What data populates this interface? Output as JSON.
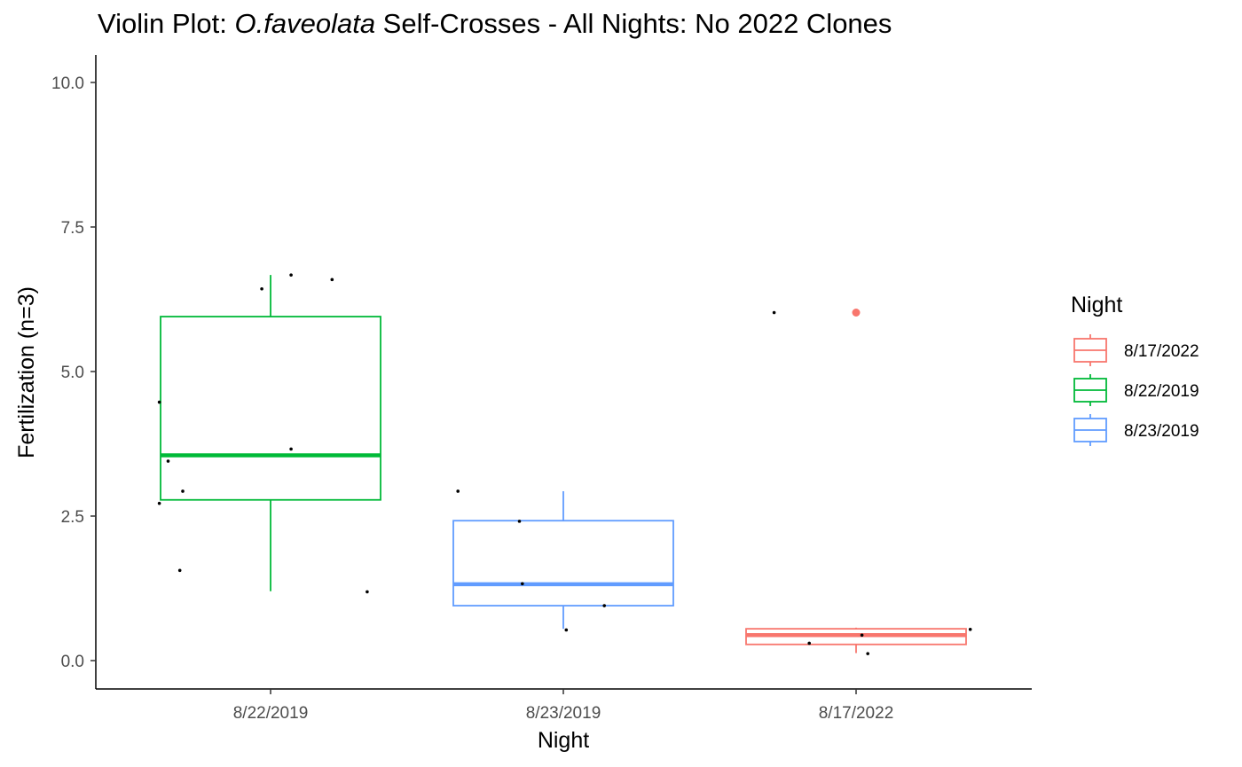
{
  "chart_data": {
    "type": "box",
    "title_prefix": "Violin Plot: ",
    "title_italic": "O.faveolata",
    "title_suffix": " Self-Crosses - All Nights: No 2022 Clones",
    "xlabel": "Night",
    "ylabel": "Fertilization (n=3)",
    "ylim": [
      -1.0,
      10.5
    ],
    "yticks": [
      0.0,
      2.5,
      5.0,
      7.5,
      10.0
    ],
    "ytick_labels": [
      "0.0",
      "2.5",
      "5.0",
      "7.5",
      "10.0"
    ],
    "categories": [
      "8/22/2019",
      "8/23/2019",
      "8/17/2022"
    ],
    "grid": false,
    "legend": {
      "title": "Night",
      "position": "right",
      "entries": [
        "8/17/2022",
        "8/22/2019",
        "8/23/2019"
      ]
    },
    "colors": {
      "8/17/2022": "#F8766D",
      "8/22/2019": "#00BA38",
      "8/23/2019": "#619CFF"
    },
    "boxes": [
      {
        "category": "8/22/2019",
        "whisker_low": 1.2,
        "q1": 2.78,
        "median": 3.55,
        "q3": 5.95,
        "whisker_high": 6.67,
        "outliers": []
      },
      {
        "category": "8/23/2019",
        "whisker_low": 0.55,
        "q1": 0.95,
        "median": 1.32,
        "q3": 2.42,
        "whisker_high": 2.93,
        "outliers": []
      },
      {
        "category": "8/17/2022",
        "whisker_low": 0.13,
        "q1": 0.28,
        "median": 0.44,
        "q3": 0.55,
        "whisker_high": 0.57,
        "outliers": [
          6.02
        ]
      }
    ],
    "points": [
      {
        "category": "8/22/2019",
        "x": 0.62,
        "y": 4.47
      },
      {
        "category": "8/22/2019",
        "x": 0.65,
        "y": 3.45
      },
      {
        "category": "8/22/2019",
        "x": 0.7,
        "y": 2.93
      },
      {
        "category": "8/22/2019",
        "x": 0.62,
        "y": 2.72
      },
      {
        "category": "8/22/2019",
        "x": 0.69,
        "y": 1.56
      },
      {
        "category": "8/22/2019",
        "x": 0.97,
        "y": 6.43
      },
      {
        "category": "8/22/2019",
        "x": 1.07,
        "y": 6.67
      },
      {
        "category": "8/22/2019",
        "x": 1.21,
        "y": 6.59
      },
      {
        "category": "8/22/2019",
        "x": 1.07,
        "y": 3.66
      },
      {
        "category": "8/22/2019",
        "x": 1.33,
        "y": 1.19
      },
      {
        "category": "8/23/2019",
        "x": 1.64,
        "y": 2.93
      },
      {
        "category": "8/23/2019",
        "x": 1.85,
        "y": 2.41
      },
      {
        "category": "8/23/2019",
        "x": 1.86,
        "y": 1.33
      },
      {
        "category": "8/23/2019",
        "x": 2.14,
        "y": 0.95
      },
      {
        "category": "8/23/2019",
        "x": 2.01,
        "y": 0.53
      },
      {
        "category": "8/17/2022",
        "x": 2.72,
        "y": 6.02
      },
      {
        "category": "8/17/2022",
        "x": 2.84,
        "y": 0.3
      },
      {
        "category": "8/17/2022",
        "x": 3.02,
        "y": 0.44
      },
      {
        "category": "8/17/2022",
        "x": 3.04,
        "y": 0.12
      },
      {
        "category": "8/17/2022",
        "x": 3.39,
        "y": 0.54
      }
    ]
  }
}
